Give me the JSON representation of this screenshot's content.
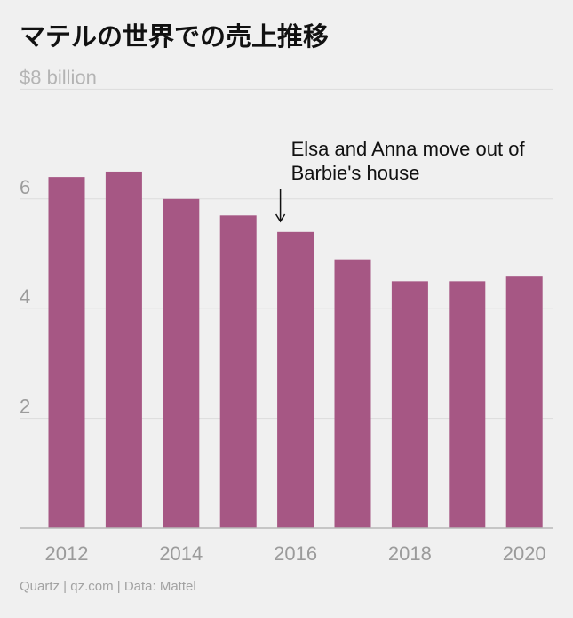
{
  "title": "マテルの世界での売上推移",
  "footer": "Quartz | qz.com | Data: Mattel",
  "colors": {
    "bar": "#a65784",
    "grid": "#dcdcdc",
    "axis": "#b8b8b8",
    "background": "#f0f0f0"
  },
  "chart_data": {
    "type": "bar",
    "unit_label": "$8 billion",
    "x": [
      2012,
      2013,
      2014,
      2015,
      2016,
      2017,
      2018,
      2019,
      2020
    ],
    "values": [
      6.4,
      6.5,
      6.0,
      5.7,
      5.4,
      4.9,
      4.5,
      4.5,
      4.6
    ],
    "ylim": [
      0,
      8
    ],
    "y_ticks": [
      2,
      4,
      6
    ],
    "x_tick_labels": [
      "2012",
      "2014",
      "2016",
      "2018",
      "2020"
    ],
    "grid": true,
    "annotation": {
      "lines": [
        "Elsa and Anna move out of",
        "Barbie's house"
      ],
      "target_x": 2016
    }
  }
}
